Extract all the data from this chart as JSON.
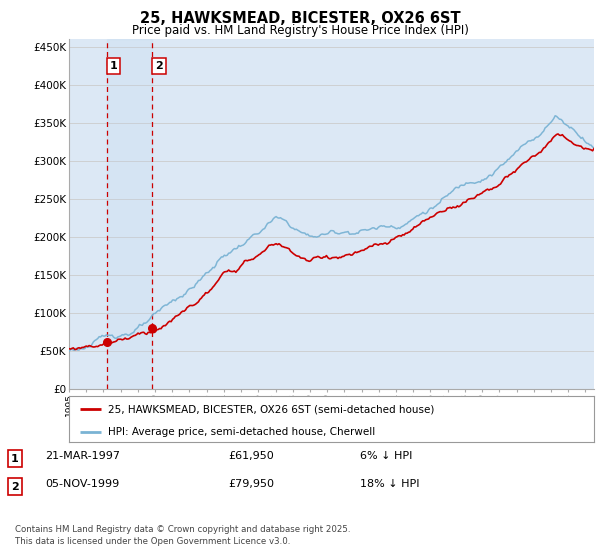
{
  "title": "25, HAWKSMEAD, BICESTER, OX26 6ST",
  "subtitle": "Price paid vs. HM Land Registry's House Price Index (HPI)",
  "ylim": [
    0,
    460000
  ],
  "yticks": [
    0,
    50000,
    100000,
    150000,
    200000,
    250000,
    300000,
    350000,
    400000,
    450000
  ],
  "ytick_labels": [
    "£0",
    "£50K",
    "£100K",
    "£150K",
    "£200K",
    "£250K",
    "£300K",
    "£350K",
    "£400K",
    "£450K"
  ],
  "hpi_color": "#7ab3d4",
  "price_color": "#cc0000",
  "vline_color": "#cc0000",
  "grid_color": "#cccccc",
  "bg_color": "#dce8f5",
  "sale1_year": 1997.22,
  "sale1_price": 61950,
  "sale1_label": "1",
  "sale2_year": 1999.85,
  "sale2_price": 79950,
  "sale2_label": "2",
  "legend_label1": "25, HAWKSMEAD, BICESTER, OX26 6ST (semi-detached house)",
  "legend_label2": "HPI: Average price, semi-detached house, Cherwell",
  "table_entries": [
    {
      "num": "1",
      "date": "21-MAR-1997",
      "price": "£61,950",
      "pct": "6% ↓ HPI"
    },
    {
      "num": "2",
      "date": "05-NOV-1999",
      "price": "£79,950",
      "pct": "18% ↓ HPI"
    }
  ],
  "footnote": "Contains HM Land Registry data © Crown copyright and database right 2025.\nThis data is licensed under the Open Government Licence v3.0.",
  "xmin": 1995,
  "xmax": 2025.5
}
